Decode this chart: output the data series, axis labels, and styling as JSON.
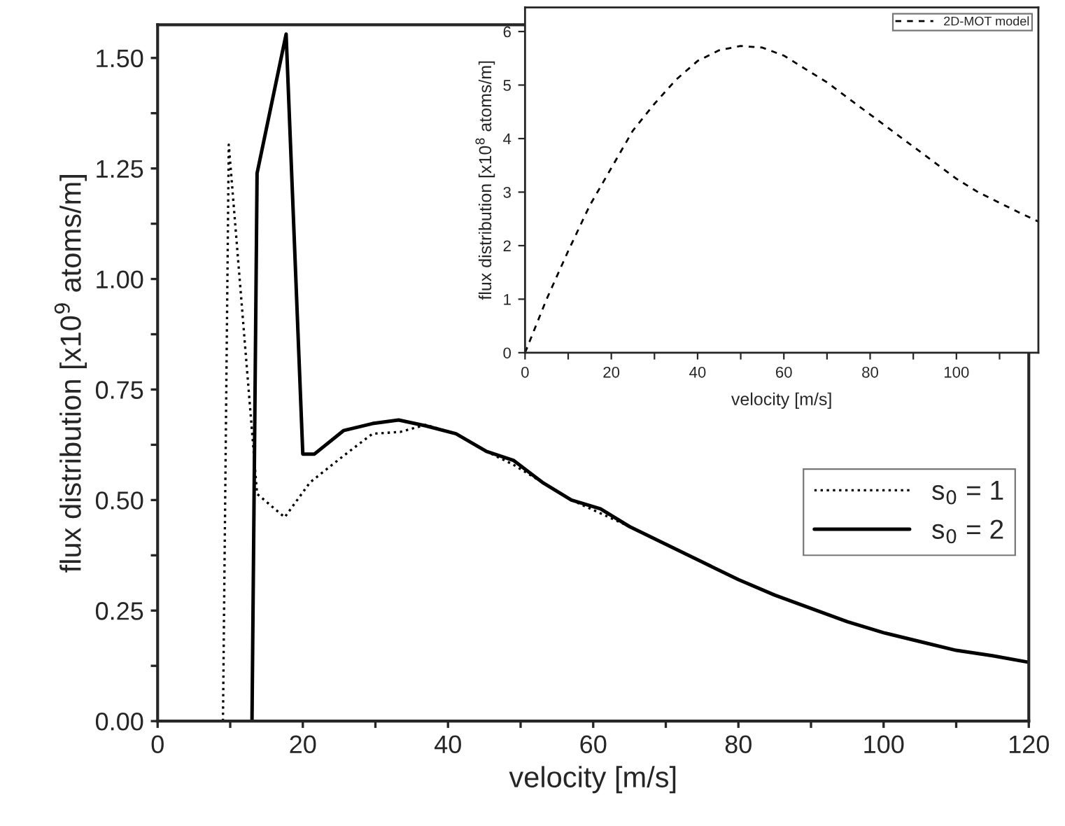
{
  "chart_data": [
    {
      "type": "line",
      "xlabel": "velocity [m/s]",
      "ylabel": "flux distribution [x10$^{9}$ atoms/m]",
      "xlim": [
        0,
        120
      ],
      "ylim": [
        0,
        1.575
      ],
      "xticks": [
        0,
        {
          "value": 10,
          "label": null
        },
        20,
        {
          "value": 30,
          "label": null
        },
        40,
        {
          "value": 50,
          "label": null
        },
        60,
        {
          "value": 70,
          "label": null
        },
        80,
        {
          "value": 90,
          "label": null
        },
        100,
        {
          "value": 110,
          "label": null
        },
        120
      ],
      "yticks": [
        {
          "value": 0,
          "label": "0.00"
        },
        {
          "value": 0.125,
          "label": null
        },
        {
          "value": 0.25,
          "label": "0.25"
        },
        {
          "value": 0.375,
          "label": null
        },
        {
          "value": 0.5,
          "label": "0.50"
        },
        {
          "value": 0.625,
          "label": null
        },
        {
          "value": 0.75,
          "label": "0.75"
        },
        {
          "value": 0.875,
          "label": null
        },
        {
          "value": 1.0,
          "label": "1.00"
        },
        {
          "value": 1.125,
          "label": null
        },
        {
          "value": 1.25,
          "label": "1.25"
        },
        {
          "value": 1.375,
          "label": null
        },
        {
          "value": 1.5,
          "label": "1.50"
        }
      ],
      "grid": false,
      "legend": "right",
      "series": [
        {
          "name": "s$_{0}$ = 1",
          "color": "#000000",
          "line_style": "dotted",
          "x": [
            9.0,
            9.8,
            13.7,
            17.5,
            21.0,
            25.6,
            29.6,
            33.4,
            36.9,
            41.1,
            45.3,
            49.0,
            53.0,
            57.0,
            61.0,
            65.0,
            70,
            75,
            80,
            85,
            90,
            95,
            100,
            105,
            110,
            115,
            120
          ],
          "values": [
            0,
            1.304,
            0.514,
            0.461,
            0.54,
            0.6,
            0.65,
            0.654,
            0.67,
            0.65,
            0.61,
            0.58,
            0.54,
            0.5,
            0.47,
            0.44,
            0.4,
            0.36,
            0.32,
            0.285,
            0.255,
            0.225,
            0.2,
            0.18,
            0.16,
            0.148,
            0.133
          ]
        },
        {
          "name": "s$_{0}$ = 2",
          "color": "#000000",
          "line_style": "solid",
          "x": [
            13.0,
            13.7,
            17.7,
            20.0,
            21.6,
            25.6,
            29.6,
            33.2,
            36.9,
            41.1,
            45.3,
            49.0,
            53.0,
            57.0,
            61.0,
            65.0,
            70,
            75,
            80,
            85,
            90,
            95,
            100,
            105,
            110,
            115,
            120
          ],
          "values": [
            0,
            1.239,
            1.554,
            0.604,
            0.604,
            0.657,
            0.673,
            0.681,
            0.668,
            0.65,
            0.61,
            0.59,
            0.54,
            0.5,
            0.48,
            0.44,
            0.4,
            0.36,
            0.32,
            0.285,
            0.255,
            0.225,
            0.2,
            0.18,
            0.16,
            0.148,
            0.133
          ]
        }
      ]
    },
    {
      "type": "line",
      "xlabel": "velocity [m/s]",
      "ylabel": "flux distribution [x10$^{8}$ atoms/m]",
      "xlim": [
        0,
        119
      ],
      "ylim": [
        0,
        6.45
      ],
      "xticks": [
        0,
        {
          "value": 10,
          "label": null
        },
        20,
        {
          "value": 30,
          "label": null
        },
        40,
        {
          "value": 50,
          "label": null
        },
        60,
        {
          "value": 70,
          "label": null
        },
        80,
        {
          "value": 90,
          "label": null
        },
        100,
        {
          "value": 110,
          "label": null
        }
      ],
      "yticks": [
        0,
        1,
        2,
        3,
        4,
        5,
        6
      ],
      "grid": false,
      "legend": "top right",
      "series": [
        {
          "name": "2D-MOT model",
          "color": "#000000",
          "line_style": "dashed",
          "x": [
            0,
            5,
            10,
            15,
            20,
            25,
            30,
            35,
            40,
            45,
            50,
            55,
            60,
            65,
            70,
            75,
            80,
            85,
            90,
            95,
            100,
            105,
            110,
            115,
            119
          ],
          "values": [
            0,
            1.0,
            1.9,
            2.75,
            3.45,
            4.15,
            4.65,
            5.1,
            5.45,
            5.65,
            5.73,
            5.7,
            5.55,
            5.3,
            5.05,
            4.75,
            4.45,
            4.15,
            3.85,
            3.55,
            3.25,
            3.0,
            2.8,
            2.6,
            2.45
          ]
        }
      ]
    }
  ]
}
